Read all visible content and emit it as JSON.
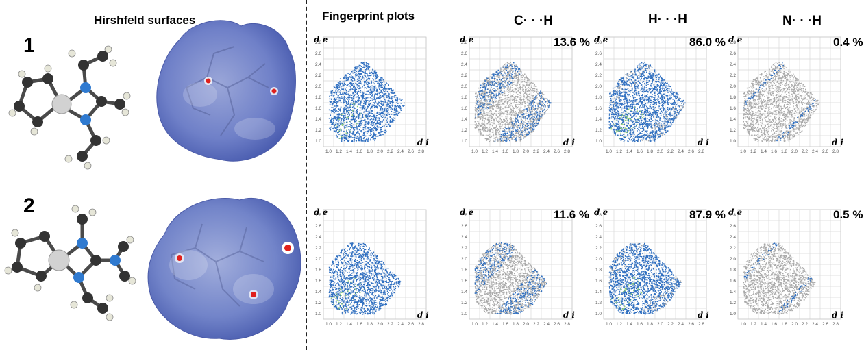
{
  "headers": {
    "hirshfeld": "Hirshfeld surfaces",
    "fingerprint": "Fingerprint plots",
    "ch": "C· · ·H",
    "hh": "H· · ·H",
    "nh": "N· · ·H"
  },
  "rows": [
    {
      "label": "1",
      "percents": {
        "ch": "13.6 %",
        "hh": "86.0 %",
        "nh": "0.4 %"
      }
    },
    {
      "label": "2",
      "percents": {
        "ch": "11.6 %",
        "hh": "87.9 %",
        "nh": "0.5 %"
      }
    }
  ],
  "axis": {
    "x_label": "d i",
    "y_label": "d e",
    "ticks": [
      "1.0",
      "1.2",
      "1.4",
      "1.6",
      "1.8",
      "2.0",
      "2.2",
      "2.4",
      "2.6",
      "2.8"
    ],
    "range": [
      0.9,
      2.9
    ]
  },
  "colors": {
    "fingerprint_blue": "#2f6fc0",
    "fingerprint_green": "#8fd070",
    "fingerprint_gray": "#a9a9a9",
    "surface_blue": "#6f80c8",
    "surface_red": "#e0201c",
    "atom_carbon": "#3a3a3a",
    "atom_nitrogen": "#2f7ad0",
    "atom_hydrogen": "#e6e6d8",
    "atom_metal": "#c8c8c8"
  }
}
